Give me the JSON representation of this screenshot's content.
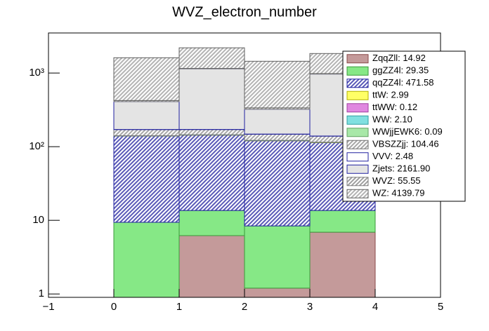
{
  "chart_data": {
    "type": "stacked_histogram",
    "title": "WVZ_electron_number",
    "bins": [
      0,
      1,
      2,
      3,
      4
    ],
    "xlim": [
      -1,
      5
    ],
    "xticks": [
      {
        "value": -1,
        "label": "−1"
      },
      0,
      1,
      2,
      3,
      4,
      5
    ],
    "ylim": [
      0.9,
      3500
    ],
    "yticks": [
      1,
      10,
      {
        "value": 100,
        "label": "10²"
      },
      {
        "value": 1000,
        "label": "10³"
      }
    ],
    "log_y": true,
    "legend": "upper right",
    "series": [
      {
        "name": "ZqqZll: 14.92",
        "color": "#c49a9a",
        "line": "#8a4a4a",
        "hatch": false,
        "values": [
          0,
          6.2,
          1.2,
          6.9
        ]
      },
      {
        "name": "ggZZ4l: 29.35",
        "color": "#86e886",
        "line": "#3a9a3a",
        "hatch": false,
        "values": [
          9.4,
          7.4,
          7.2,
          6.7
        ]
      },
      {
        "name": "qqZZ4l: 471.58",
        "color": "#5a5ab8",
        "line": "#2020a0",
        "hatch": true,
        "values": [
          130,
          130,
          112,
          100
        ]
      },
      {
        "name": "ttW: 2.99",
        "color": "#ffff66",
        "line": "#b0b000",
        "hatch": false,
        "values": [
          0.75,
          0.75,
          0.75,
          0.75
        ]
      },
      {
        "name": "ttWW: 0.12",
        "color": "#e088e0",
        "line": "#a040a0",
        "hatch": false,
        "values": [
          0.03,
          0.03,
          0.03,
          0.03
        ]
      },
      {
        "name": "WW: 2.10",
        "color": "#80e0e0",
        "line": "#30a0a0",
        "hatch": false,
        "values": [
          0.5,
          0.5,
          0.5,
          0.5
        ]
      },
      {
        "name": "WWjjEWK6: 0.09",
        "color": "#a8e8a8",
        "line": "#60a060",
        "hatch": false,
        "values": [
          0.02,
          0.02,
          0.02,
          0.02
        ]
      },
      {
        "name": "VBSZZjj: 104.46",
        "color": "#a8a8a8",
        "line": "#707070",
        "hatch": true,
        "values": [
          30,
          26,
          26,
          24
        ]
      },
      {
        "name": "VVV: 2.48",
        "color": "#ffffff",
        "line": "#2020a0",
        "hatch": false,
        "values": [
          0.6,
          0.6,
          0.6,
          0.6
        ]
      },
      {
        "name": "Zjets: 2161.90",
        "color": "#e4e4e4",
        "line": "#2020a0",
        "hatch": false,
        "values": [
          238,
          970,
          174,
          829
        ]
      },
      {
        "name": "WVZ: 55.55",
        "color": "#a0a0a0",
        "line": "#808080",
        "hatch": true,
        "values": [
          14,
          14,
          14,
          14
        ]
      },
      {
        "name": "WZ: 4139.79",
        "color": "#b4b4b4",
        "line": "#606060",
        "hatch": true,
        "values": [
          1190,
          1045,
          1109,
          858
        ]
      }
    ]
  }
}
